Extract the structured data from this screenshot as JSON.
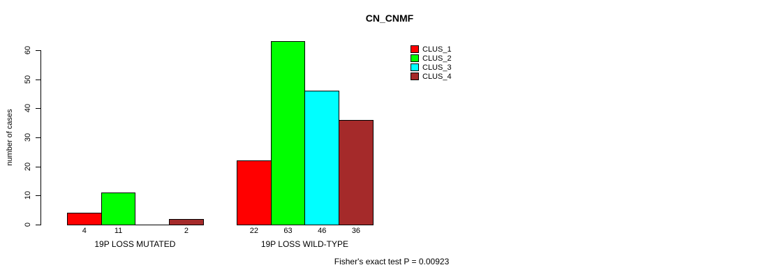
{
  "title": "CN_CNMF",
  "footer": "Fisher's exact test P = 0.00923",
  "chart_data": {
    "type": "bar",
    "title": "CN_CNMF",
    "xlabel": "",
    "ylabel": "number of cases",
    "ylim": [
      0,
      60
    ],
    "yticks": [
      0,
      10,
      20,
      30,
      40,
      50,
      60
    ],
    "grid": false,
    "legend_position": "top-right",
    "categories": [
      "19P LOSS MUTATED",
      "19P LOSS WILD-TYPE"
    ],
    "series": [
      {
        "name": "CLUS_1",
        "color": "#ff0000",
        "values": [
          4,
          22
        ]
      },
      {
        "name": "CLUS_2",
        "color": "#00ff00",
        "values": [
          11,
          63
        ]
      },
      {
        "name": "CLUS_3",
        "color": "#00ffff",
        "values": [
          0,
          46
        ]
      },
      {
        "name": "CLUS_4",
        "color": "#a52a2a",
        "values": [
          2,
          36
        ]
      }
    ],
    "bar_value_labels_shown": true,
    "zero_value_labels_hidden": true,
    "annotation": "Fisher's exact test P = 0.00923"
  }
}
